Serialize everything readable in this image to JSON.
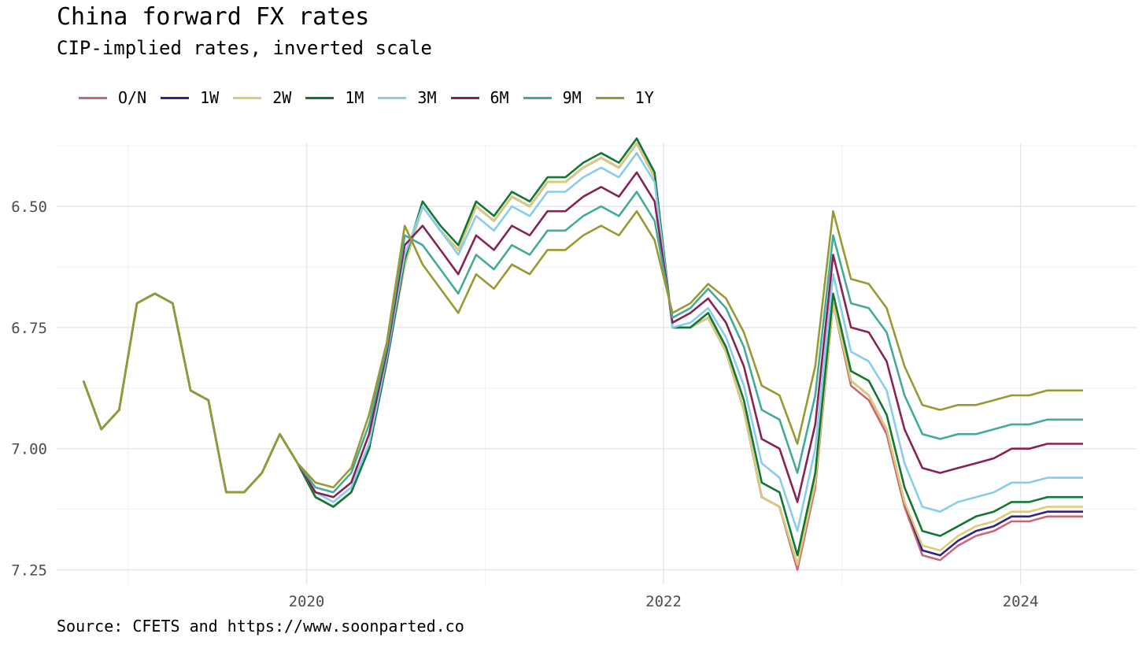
{
  "header": {
    "title": "China forward FX rates",
    "subtitle": "CIP-implied rates, inverted scale"
  },
  "caption": "Source: CFETS and https://www.soonparted.co",
  "chart_data": {
    "type": "line",
    "title": "China forward FX rates",
    "subtitle": "CIP-implied rates, inverted scale",
    "xlabel": "",
    "ylabel": "",
    "y_inverted": true,
    "xlim": [
      2018.6,
      2024.65
    ],
    "ylim": [
      6.37,
      7.28
    ],
    "x_ticks": [
      "2020",
      "2022",
      "2024"
    ],
    "y_ticks": [
      "6.50",
      "6.75",
      "7.00",
      "7.25"
    ],
    "grid": true,
    "legend_position": "top-left",
    "x": [
      2018.75,
      2018.85,
      2018.95,
      2019.05,
      2019.15,
      2019.25,
      2019.35,
      2019.45,
      2019.55,
      2019.65,
      2019.75,
      2019.85,
      2019.95,
      2020.05,
      2020.15,
      2020.25,
      2020.35,
      2020.45,
      2020.55,
      2020.65,
      2020.75,
      2020.85,
      2020.95,
      2021.05,
      2021.15,
      2021.25,
      2021.35,
      2021.45,
      2021.55,
      2021.65,
      2021.75,
      2021.85,
      2021.95,
      2022.05,
      2022.15,
      2022.25,
      2022.35,
      2022.45,
      2022.55,
      2022.65,
      2022.75,
      2022.85,
      2022.95,
      2023.05,
      2023.15,
      2023.25,
      2023.35,
      2023.45,
      2023.55,
      2023.65,
      2023.75,
      2023.85,
      2023.95,
      2024.05,
      2024.15,
      2024.25,
      2024.35
    ],
    "series": [
      {
        "name": "O/N",
        "color": "#CC6677",
        "values": [
          6.86,
          6.96,
          6.92,
          6.7,
          6.68,
          6.7,
          6.88,
          6.9,
          7.09,
          7.09,
          7.05,
          6.97,
          7.03,
          7.1,
          7.12,
          7.09,
          7.0,
          6.82,
          6.62,
          6.5,
          6.55,
          6.59,
          6.5,
          6.53,
          6.48,
          6.5,
          6.45,
          6.45,
          6.42,
          6.4,
          6.42,
          6.37,
          6.44,
          6.75,
          6.75,
          6.73,
          6.8,
          6.92,
          7.1,
          7.12,
          7.25,
          7.08,
          6.7,
          6.87,
          6.9,
          6.97,
          7.12,
          7.22,
          7.23,
          7.2,
          7.18,
          7.17,
          7.15,
          7.15,
          7.14,
          7.14,
          7.14
        ]
      },
      {
        "name": "1W",
        "color": "#332288",
        "values": [
          6.86,
          6.96,
          6.92,
          6.7,
          6.68,
          6.7,
          6.88,
          6.9,
          7.09,
          7.09,
          7.05,
          6.97,
          7.03,
          7.1,
          7.12,
          7.09,
          7.0,
          6.82,
          6.62,
          6.5,
          6.55,
          6.59,
          6.5,
          6.53,
          6.48,
          6.5,
          6.45,
          6.45,
          6.42,
          6.4,
          6.42,
          6.37,
          6.44,
          6.75,
          6.75,
          6.73,
          6.8,
          6.92,
          7.1,
          7.12,
          7.24,
          7.07,
          6.7,
          6.86,
          6.89,
          6.96,
          7.11,
          7.21,
          7.22,
          7.19,
          7.17,
          7.16,
          7.14,
          7.14,
          7.13,
          7.13,
          7.13
        ]
      },
      {
        "name": "2W",
        "color": "#DDCC77",
        "values": [
          6.86,
          6.96,
          6.92,
          6.7,
          6.68,
          6.7,
          6.88,
          6.9,
          7.09,
          7.09,
          7.05,
          6.97,
          7.03,
          7.1,
          7.12,
          7.09,
          7.0,
          6.82,
          6.62,
          6.5,
          6.55,
          6.59,
          6.5,
          6.53,
          6.48,
          6.5,
          6.45,
          6.45,
          6.42,
          6.4,
          6.42,
          6.37,
          6.44,
          6.75,
          6.75,
          6.73,
          6.8,
          6.92,
          7.1,
          7.12,
          7.24,
          7.07,
          6.7,
          6.86,
          6.89,
          6.96,
          7.11,
          7.2,
          7.21,
          7.18,
          7.16,
          7.15,
          7.13,
          7.13,
          7.12,
          7.12,
          7.12
        ]
      },
      {
        "name": "1M",
        "color": "#117733",
        "values": [
          6.86,
          6.96,
          6.92,
          6.7,
          6.68,
          6.7,
          6.88,
          6.9,
          7.09,
          7.09,
          7.05,
          6.97,
          7.03,
          7.1,
          7.12,
          7.09,
          7.0,
          6.82,
          6.61,
          6.49,
          6.54,
          6.58,
          6.49,
          6.52,
          6.47,
          6.49,
          6.44,
          6.44,
          6.41,
          6.39,
          6.41,
          6.36,
          6.43,
          6.75,
          6.75,
          6.72,
          6.79,
          6.9,
          7.07,
          7.09,
          7.22,
          7.05,
          6.68,
          6.84,
          6.86,
          6.93,
          7.08,
          7.17,
          7.18,
          7.16,
          7.14,
          7.13,
          7.11,
          7.11,
          7.1,
          7.1,
          7.1
        ]
      },
      {
        "name": "3M",
        "color": "#88CCEE",
        "values": [
          6.86,
          6.96,
          6.92,
          6.7,
          6.68,
          6.7,
          6.88,
          6.9,
          7.09,
          7.09,
          7.05,
          6.97,
          7.03,
          7.09,
          7.11,
          7.08,
          6.99,
          6.81,
          6.6,
          6.5,
          6.55,
          6.6,
          6.52,
          6.55,
          6.5,
          6.52,
          6.47,
          6.47,
          6.44,
          6.42,
          6.44,
          6.39,
          6.45,
          6.75,
          6.74,
          6.71,
          6.77,
          6.87,
          7.03,
          7.06,
          7.17,
          7.0,
          6.64,
          6.8,
          6.82,
          6.88,
          7.03,
          7.12,
          7.13,
          7.11,
          7.1,
          7.09,
          7.07,
          7.07,
          7.06,
          7.06,
          7.06
        ]
      },
      {
        "name": "6M",
        "color": "#882255",
        "values": [
          6.86,
          6.96,
          6.92,
          6.7,
          6.68,
          6.7,
          6.88,
          6.9,
          7.09,
          7.09,
          7.05,
          6.97,
          7.03,
          7.09,
          7.1,
          7.07,
          6.97,
          6.8,
          6.58,
          6.54,
          6.59,
          6.64,
          6.56,
          6.59,
          6.54,
          6.56,
          6.51,
          6.51,
          6.48,
          6.46,
          6.48,
          6.43,
          6.49,
          6.74,
          6.72,
          6.69,
          6.74,
          6.83,
          6.98,
          7.0,
          7.11,
          6.95,
          6.6,
          6.75,
          6.76,
          6.82,
          6.96,
          7.04,
          7.05,
          7.04,
          7.03,
          7.02,
          7.0,
          7.0,
          6.99,
          6.99,
          6.99
        ]
      },
      {
        "name": "9M",
        "color": "#44AA99",
        "values": [
          6.86,
          6.96,
          6.92,
          6.7,
          6.68,
          6.7,
          6.88,
          6.9,
          7.09,
          7.09,
          7.05,
          6.97,
          7.03,
          7.08,
          7.09,
          7.05,
          6.95,
          6.79,
          6.56,
          6.58,
          6.63,
          6.68,
          6.6,
          6.63,
          6.58,
          6.6,
          6.55,
          6.55,
          6.52,
          6.5,
          6.52,
          6.47,
          6.53,
          6.73,
          6.71,
          6.67,
          6.71,
          6.79,
          6.92,
          6.94,
          7.05,
          6.89,
          6.56,
          6.7,
          6.71,
          6.76,
          6.89,
          6.97,
          6.98,
          6.97,
          6.97,
          6.96,
          6.95,
          6.95,
          6.94,
          6.94,
          6.94
        ]
      },
      {
        "name": "1Y",
        "color": "#999933",
        "values": [
          6.86,
          6.96,
          6.92,
          6.7,
          6.68,
          6.7,
          6.88,
          6.9,
          7.09,
          7.09,
          7.05,
          6.97,
          7.03,
          7.07,
          7.08,
          7.04,
          6.93,
          6.78,
          6.54,
          6.62,
          6.67,
          6.72,
          6.64,
          6.67,
          6.62,
          6.64,
          6.59,
          6.59,
          6.56,
          6.54,
          6.56,
          6.51,
          6.57,
          6.72,
          6.7,
          6.66,
          6.69,
          6.76,
          6.87,
          6.89,
          6.99,
          6.83,
          6.51,
          6.65,
          6.66,
          6.71,
          6.83,
          6.91,
          6.92,
          6.91,
          6.91,
          6.9,
          6.89,
          6.89,
          6.88,
          6.88,
          6.88
        ]
      }
    ]
  }
}
